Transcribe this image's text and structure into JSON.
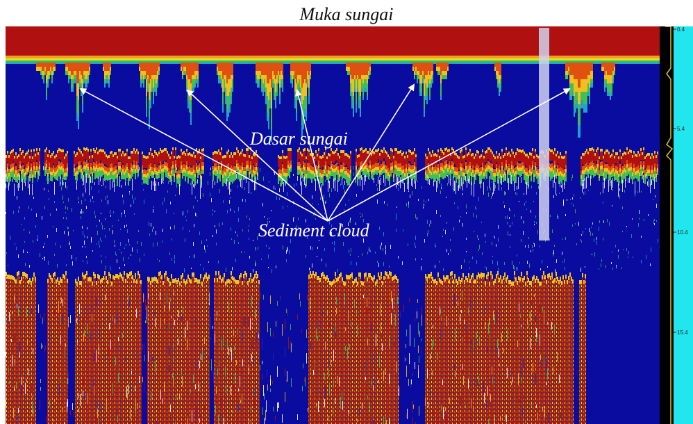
{
  "title": "Muka sungai",
  "annotations": {
    "bottom_label": "Dasar sungai",
    "cloud_label": "Sediment cloud"
  },
  "depth_axis": {
    "ticks": [
      "0.4",
      "5.4",
      "10.4",
      "15.4"
    ]
  },
  "colors": {
    "water": "#0a0ca0",
    "surface": "#b01010",
    "sediment": "#a81c10",
    "scale_bar": "#22e6ee",
    "marker": "#d0d4f0"
  }
}
